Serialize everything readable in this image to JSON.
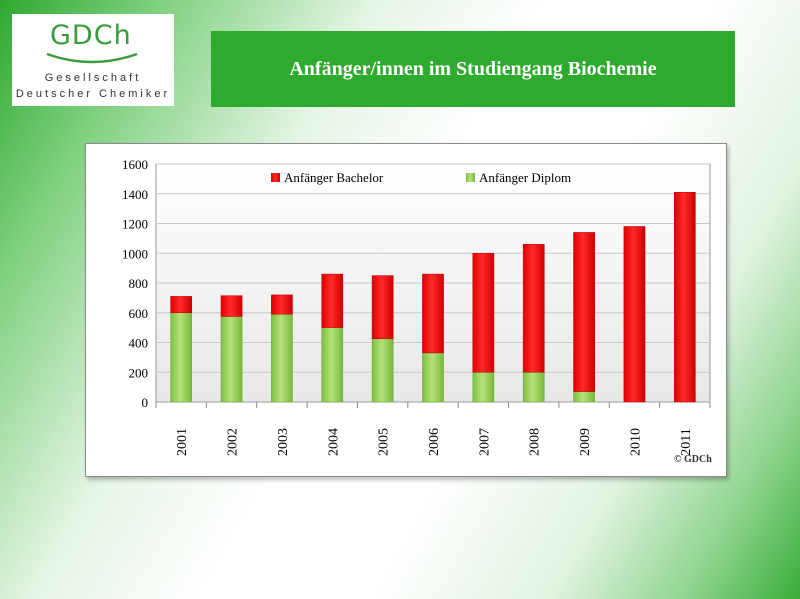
{
  "logo": {
    "mark": "GDCh",
    "line1": "Gesellschaft",
    "line2": "Deutscher Chemiker",
    "brand_color": "#3b9b3b"
  },
  "title": "Anfänger/innen im Studiengang Biochemie",
  "copyright": "© GDCh",
  "colors": {
    "title_background": "#2eaa2e",
    "bachelor": "#ff0000",
    "diplom": "#92d050"
  },
  "chart_data": {
    "type": "bar",
    "stacked": true,
    "categories": [
      "2001",
      "2002",
      "2003",
      "2004",
      "2005",
      "2006",
      "2007",
      "2008",
      "2009",
      "2010",
      "2011"
    ],
    "series": [
      {
        "name": "Anfänger Bachelor",
        "color": "#ff0000",
        "values": [
          110,
          140,
          130,
          360,
          425,
          530,
          800,
          860,
          1070,
          1180,
          1410
        ]
      },
      {
        "name": "Anfänger Diplom",
        "color": "#92d050",
        "values": [
          600,
          575,
          590,
          500,
          425,
          330,
          200,
          200,
          70,
          0,
          0
        ]
      }
    ],
    "ylim": [
      0,
      1600
    ],
    "yticks": [
      0,
      200,
      400,
      600,
      800,
      1000,
      1200,
      1400,
      1600
    ],
    "grid": true,
    "legend_position": "top",
    "xlabel": "",
    "ylabel": ""
  }
}
